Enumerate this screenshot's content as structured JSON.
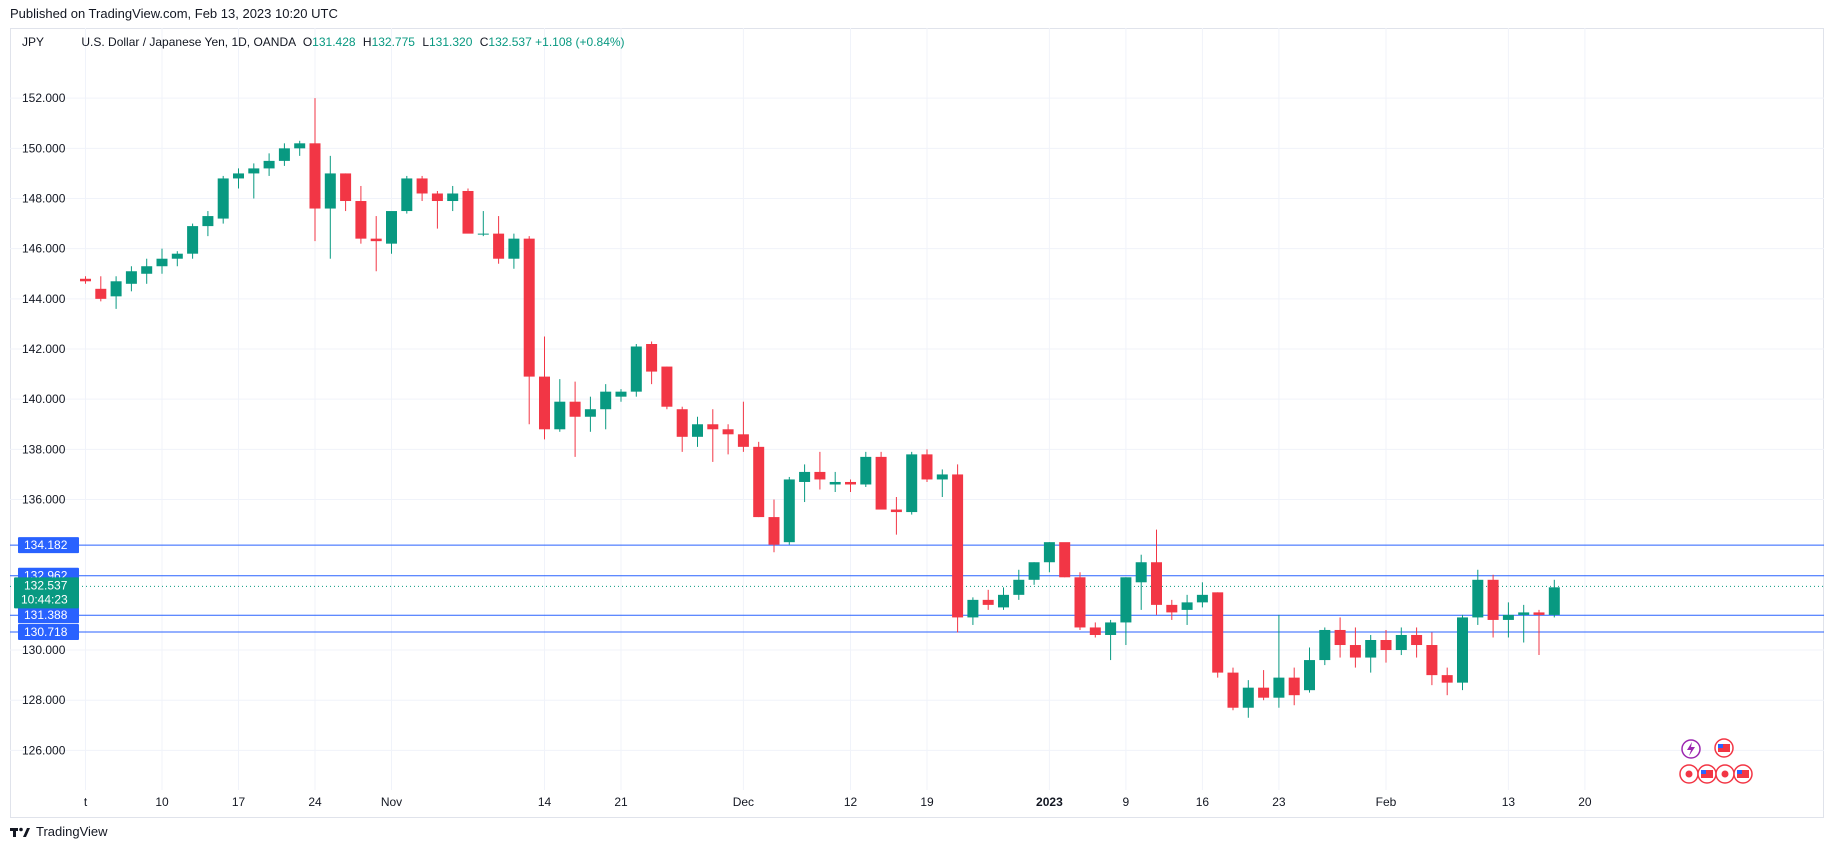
{
  "header": {
    "published": "Published on TradingView.com, Feb 13, 2023 10:20 UTC"
  },
  "legend": {
    "symbol": "JPY",
    "name": "U.S. Dollar / Japanese Yen, 1D, OANDA",
    "o_label": "O",
    "o": "131.428",
    "h_label": "H",
    "h": "132.775",
    "l_label": "L",
    "l": "131.320",
    "c_label": "C",
    "c": "132.537",
    "change": "+1.108 (+0.84%)"
  },
  "footer": {
    "brand": "TradingView"
  },
  "colors": {
    "up": "#089981",
    "down": "#f23645",
    "level_line": "#2962ff",
    "grid": "#f0f3fa"
  },
  "chart_data": {
    "type": "candlestick",
    "ylim": [
      124.5,
      154
    ],
    "yticks": [
      126,
      128,
      130,
      136,
      138,
      140,
      142,
      144,
      146,
      148,
      150,
      152
    ],
    "ytick_labels": [
      "126.000",
      "128.000",
      "130.000",
      "136.000",
      "138.000",
      "140.000",
      "142.000",
      "144.000",
      "146.000",
      "148.000",
      "150.000",
      "152.000"
    ],
    "xticks": [
      {
        "label": "t",
        "i": 0
      },
      {
        "label": "10",
        "i": 5
      },
      {
        "label": "17",
        "i": 10
      },
      {
        "label": "24",
        "i": 15
      },
      {
        "label": "Nov",
        "i": 20
      },
      {
        "label": "14",
        "i": 30
      },
      {
        "label": "21",
        "i": 35
      },
      {
        "label": "Dec",
        "i": 43
      },
      {
        "label": "12",
        "i": 50
      },
      {
        "label": "19",
        "i": 55
      },
      {
        "label": "2023",
        "i": 63
      },
      {
        "label": "9",
        "i": 68
      },
      {
        "label": "16",
        "i": 73
      },
      {
        "label": "23",
        "i": 78
      },
      {
        "label": "Feb",
        "i": 85
      },
      {
        "label": "13",
        "i": 93
      },
      {
        "label": "20",
        "i": 98
      }
    ],
    "price_levels": [
      {
        "value": 134.182,
        "label": "134.182"
      },
      {
        "value": 132.962,
        "label": "132.962"
      },
      {
        "value": 131.388,
        "label": "131.388"
      },
      {
        "value": 130.718,
        "label": "130.718"
      }
    ],
    "last_price": {
      "value": 132.537,
      "label": "132.537",
      "countdown": "10:44:23"
    },
    "candles": [
      [
        144.8,
        144.9,
        144.6,
        144.7
      ],
      [
        144.4,
        144.9,
        143.9,
        144.0
      ],
      [
        144.1,
        144.9,
        143.6,
        144.7
      ],
      [
        144.6,
        145.3,
        144.3,
        145.1
      ],
      [
        145.0,
        145.6,
        144.6,
        145.3
      ],
      [
        145.3,
        146.0,
        145.0,
        145.6
      ],
      [
        145.6,
        145.9,
        145.3,
        145.8
      ],
      [
        145.8,
        147.0,
        145.6,
        146.9
      ],
      [
        146.9,
        147.5,
        146.5,
        147.3
      ],
      [
        147.2,
        148.9,
        147.0,
        148.8
      ],
      [
        148.8,
        149.2,
        148.4,
        149.0
      ],
      [
        149.0,
        149.4,
        148.0,
        149.2
      ],
      [
        149.2,
        149.8,
        148.9,
        149.5
      ],
      [
        149.5,
        150.2,
        149.3,
        150.0
      ],
      [
        150.0,
        150.3,
        149.7,
        150.2
      ],
      [
        150.2,
        152.0,
        146.3,
        147.6
      ],
      [
        147.6,
        149.7,
        145.6,
        149.0
      ],
      [
        149.0,
        149.0,
        147.5,
        147.9
      ],
      [
        147.9,
        148.5,
        146.2,
        146.4
      ],
      [
        146.4,
        147.3,
        145.1,
        146.3
      ],
      [
        146.2,
        147.3,
        145.8,
        147.5
      ],
      [
        147.5,
        148.9,
        147.4,
        148.8
      ],
      [
        148.8,
        148.9,
        147.9,
        148.2
      ],
      [
        148.2,
        148.3,
        146.8,
        147.9
      ],
      [
        147.9,
        148.5,
        147.5,
        148.2
      ],
      [
        148.3,
        148.4,
        146.7,
        146.6
      ],
      [
        146.6,
        147.5,
        146.5,
        146.6
      ],
      [
        146.6,
        147.3,
        145.4,
        145.6
      ],
      [
        145.6,
        146.6,
        145.2,
        146.4
      ],
      [
        146.4,
        146.5,
        139.0,
        140.9
      ],
      [
        140.9,
        142.5,
        138.4,
        138.8
      ],
      [
        138.8,
        140.8,
        138.7,
        139.9
      ],
      [
        139.9,
        140.7,
        137.7,
        139.3
      ],
      [
        139.3,
        140.1,
        138.7,
        139.6
      ],
      [
        139.6,
        140.6,
        138.8,
        140.3
      ],
      [
        140.1,
        140.4,
        139.9,
        140.3
      ],
      [
        140.3,
        142.2,
        140.1,
        142.1
      ],
      [
        142.2,
        142.3,
        140.6,
        141.1
      ],
      [
        141.3,
        141.3,
        139.6,
        139.7
      ],
      [
        139.6,
        139.7,
        137.9,
        138.5
      ],
      [
        138.5,
        139.3,
        138.1,
        139.0
      ],
      [
        139.0,
        139.6,
        137.5,
        138.8
      ],
      [
        138.8,
        139.0,
        137.8,
        138.6
      ],
      [
        138.6,
        139.9,
        137.9,
        138.1
      ],
      [
        138.1,
        138.3,
        135.3,
        135.3
      ],
      [
        135.3,
        136.0,
        133.9,
        134.2
      ],
      [
        134.3,
        136.9,
        134.2,
        136.8
      ],
      [
        136.7,
        137.4,
        135.9,
        137.1
      ],
      [
        137.1,
        137.9,
        136.4,
        136.8
      ],
      [
        136.6,
        137.1,
        136.3,
        136.7
      ],
      [
        136.7,
        136.8,
        136.3,
        136.6
      ],
      [
        136.6,
        137.9,
        136.5,
        137.7
      ],
      [
        137.7,
        137.9,
        135.8,
        135.6
      ],
      [
        135.6,
        136.1,
        134.6,
        135.5
      ],
      [
        135.5,
        137.9,
        135.4,
        137.8
      ],
      [
        137.8,
        138.0,
        136.7,
        136.8
      ],
      [
        136.8,
        137.2,
        136.1,
        137.0
      ],
      [
        137.0,
        137.4,
        130.7,
        131.3
      ],
      [
        131.3,
        132.1,
        131.0,
        132.0
      ],
      [
        132.0,
        132.4,
        131.6,
        131.8
      ],
      [
        131.7,
        132.5,
        131.6,
        132.2
      ],
      [
        132.2,
        133.2,
        132.0,
        132.8
      ],
      [
        132.8,
        133.5,
        132.6,
        133.5
      ],
      [
        133.5,
        134.3,
        133.1,
        134.3
      ],
      [
        134.3,
        134.2,
        132.9,
        132.9
      ],
      [
        132.9,
        133.1,
        130.8,
        130.9
      ],
      [
        130.9,
        131.1,
        130.5,
        130.6
      ],
      [
        130.6,
        131.2,
        129.6,
        131.1
      ],
      [
        131.1,
        132.9,
        130.2,
        132.9
      ],
      [
        132.7,
        133.8,
        131.6,
        133.5
      ],
      [
        133.5,
        134.8,
        131.4,
        131.8
      ],
      [
        131.8,
        132.0,
        131.2,
        131.5
      ],
      [
        131.6,
        132.2,
        131.0,
        131.9
      ],
      [
        131.9,
        132.7,
        131.7,
        132.2
      ],
      [
        132.3,
        132.3,
        128.9,
        129.1
      ],
      [
        129.1,
        129.3,
        127.6,
        127.7
      ],
      [
        127.7,
        128.8,
        127.3,
        128.5
      ],
      [
        128.5,
        129.2,
        128.0,
        128.1
      ],
      [
        128.1,
        131.4,
        127.7,
        128.9
      ],
      [
        128.9,
        129.3,
        127.8,
        128.2
      ],
      [
        128.4,
        130.1,
        128.3,
        129.6
      ],
      [
        129.6,
        130.9,
        129.4,
        130.8
      ],
      [
        130.8,
        131.3,
        129.7,
        130.2
      ],
      [
        130.2,
        130.9,
        129.3,
        129.7
      ],
      [
        129.7,
        130.6,
        129.1,
        130.4
      ],
      [
        130.4,
        130.8,
        129.5,
        130.0
      ],
      [
        130.0,
        130.9,
        129.8,
        130.6
      ],
      [
        130.6,
        130.9,
        129.7,
        130.2
      ],
      [
        130.2,
        130.7,
        128.6,
        129.0
      ],
      [
        129.0,
        129.3,
        128.2,
        128.7
      ],
      [
        128.7,
        131.4,
        128.4,
        131.3
      ],
      [
        131.3,
        133.2,
        131.0,
        132.8
      ],
      [
        132.8,
        133.0,
        130.5,
        131.2
      ],
      [
        131.2,
        131.9,
        130.5,
        131.4
      ],
      [
        131.4,
        131.8,
        130.3,
        131.5
      ],
      [
        131.5,
        131.6,
        129.8,
        131.4
      ],
      [
        131.4,
        132.8,
        131.3,
        132.5
      ]
    ]
  }
}
